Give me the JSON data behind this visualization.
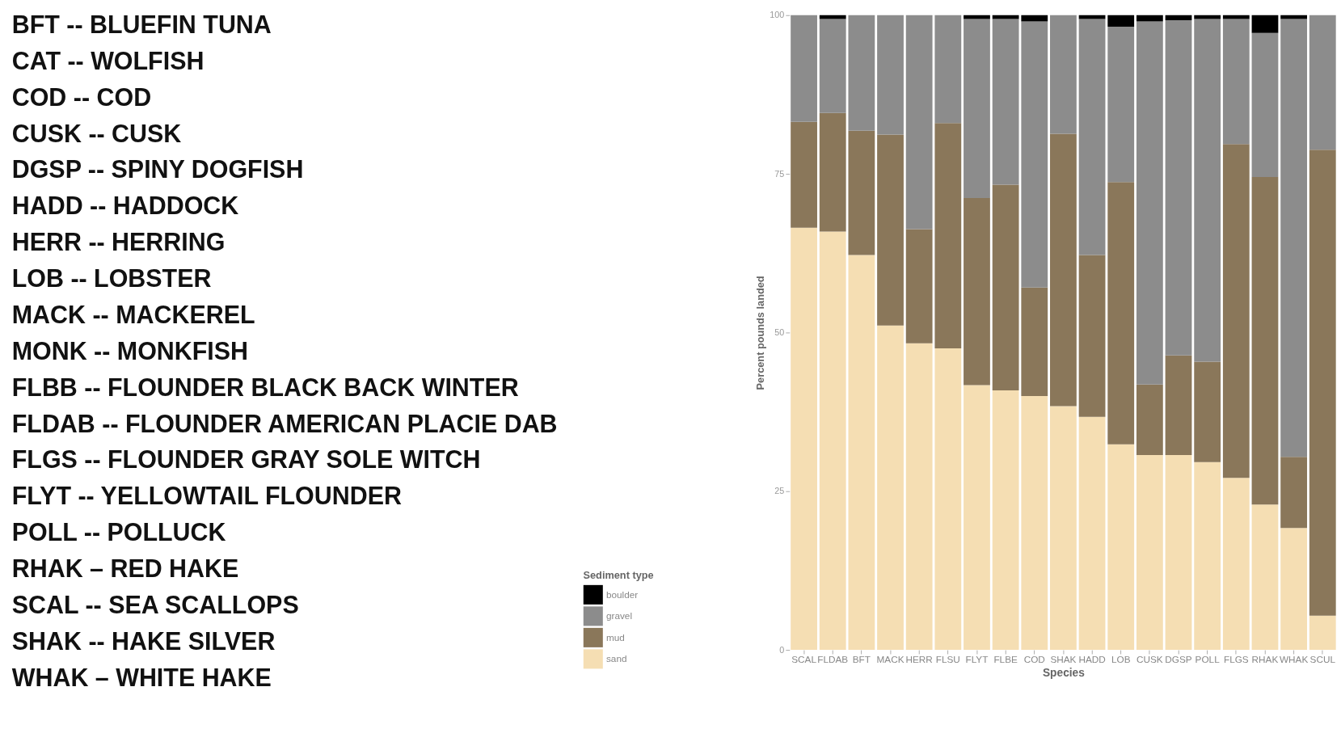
{
  "chart_data": {
    "type": "bar",
    "stacked": true,
    "annotations": [
      "BFT  --  BLUEFIN TUNA",
      "CAT  --  WOLFISH",
      "COD  --  COD",
      "CUSK  --  CUSK",
      "DGSP  --  SPINY DOGFISH",
      "HADD  --  HADDOCK",
      "HERR  --  HERRING",
      "LOB  --  LOBSTER",
      "MACK -- MACKEREL",
      "MONK  --  MONKFISH",
      "FLBB  --  FLOUNDER BLACK BACK WINTER",
      "FLDAB  --  FLOUNDER AMERICAN PLACIE DAB",
      "FLGS  --  FLOUNDER GRAY SOLE WITCH",
      "FLYT  --  YELLOWTAIL FLOUNDER",
      "POLL  --  POLLUCK",
      "RHAK – RED HAKE",
      "SCAL  --  SEA SCALLOPS",
      "SHAK  --  HAKE SILVER",
      "WHAK – WHITE HAKE"
    ],
    "xlabel": "Species",
    "ylabel": "Percent pounds landed",
    "legend_title": "Sediment type",
    "legend": "bottom left",
    "categories": [
      "SCAL",
      "FLDAB",
      "BFT",
      "MACK",
      "HERR",
      "FLSU",
      "FLYT",
      "FLBE",
      "COD",
      "SHAK",
      "HADD",
      "LOB",
      "CUSK",
      "DGSP",
      "POLL",
      "FLGS",
      "RHAK",
      "WHAK",
      "SCUL"
    ],
    "series": [
      {
        "name": "sand",
        "color": "#f5deb3",
        "values": [
          66.5,
          65.9,
          62.2,
          51.1,
          48.3,
          47.5,
          41.7,
          40.9,
          40.0,
          38.4,
          36.7,
          32.4,
          30.7,
          30.7,
          29.6,
          27.1,
          22.9,
          19.2,
          5.4
        ]
      },
      {
        "name": "mud",
        "color": "#8a775a",
        "values": [
          16.7,
          18.7,
          19.6,
          30.1,
          18.0,
          35.5,
          29.5,
          32.4,
          17.1,
          42.9,
          25.5,
          41.3,
          11.1,
          15.7,
          15.8,
          52.6,
          51.6,
          11.2,
          73.4
        ]
      },
      {
        "name": "gravel",
        "color": "#8c8c8c",
        "values": [
          16.8,
          14.8,
          18.2,
          18.8,
          33.7,
          17.0,
          28.2,
          26.1,
          41.9,
          18.7,
          37.2,
          24.5,
          57.2,
          52.8,
          54.0,
          19.7,
          22.7,
          69.0,
          21.2
        ]
      },
      {
        "name": "boulder",
        "color": "#000000",
        "values": [
          0,
          0.6,
          0,
          0,
          0,
          0,
          0.6,
          0.6,
          1.0,
          0,
          0.6,
          1.8,
          1.0,
          0.8,
          0.6,
          0.6,
          2.8,
          0.6,
          0
        ]
      }
    ],
    "ylim": [
      0,
      100
    ],
    "yticks": [
      0,
      25,
      50,
      75,
      100
    ]
  }
}
